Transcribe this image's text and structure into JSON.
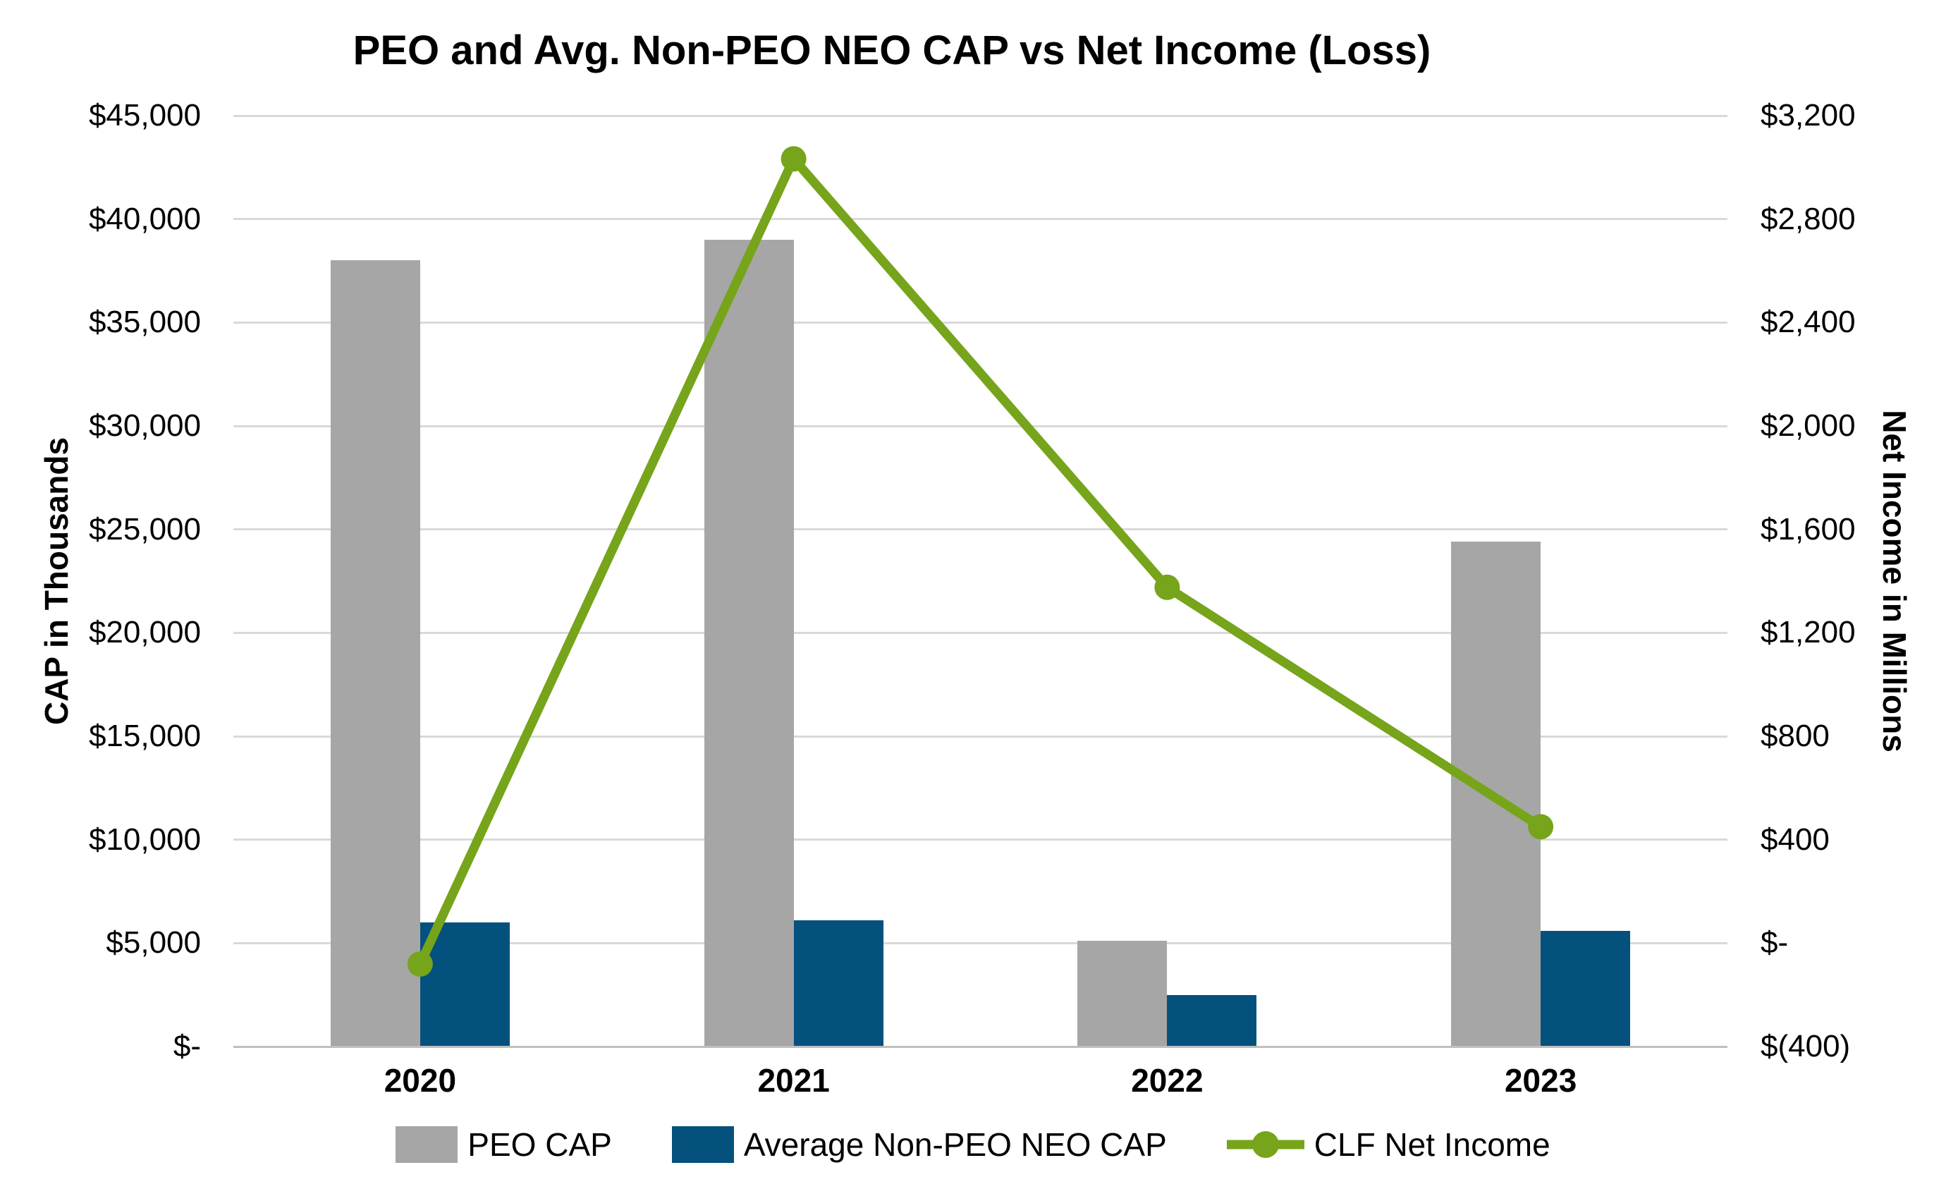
{
  "title": "PEO and Avg. Non-PEO NEO CAP vs Net Income (Loss)",
  "chart_data": {
    "type": "combo",
    "categories": [
      "2020",
      "2021",
      "2022",
      "2023"
    ],
    "series": [
      {
        "name": "PEO CAP",
        "type": "bar",
        "axis": "left",
        "color": "#a6a6a6",
        "values": [
          38000,
          39000,
          5100,
          24400
        ]
      },
      {
        "name": "Average Non-PEO NEO CAP",
        "type": "bar",
        "axis": "left",
        "color": "#05517e",
        "values": [
          6000,
          6100,
          2500,
          5600
        ]
      },
      {
        "name": "CLF Net Income",
        "type": "line",
        "axis": "right",
        "color": "#76a41a",
        "values": [
          -81,
          3033,
          1376,
          450
        ]
      }
    ],
    "left_axis": {
      "title": "CAP in Thousands",
      "min": 0,
      "max": 45000,
      "step": 5000,
      "tick_labels": [
        "$45,000",
        "$40,000",
        "$35,000",
        "$30,000",
        "$25,000",
        "$20,000",
        "$15,000",
        "$10,000",
        "$5,000",
        "$-"
      ]
    },
    "right_axis": {
      "title": "Net Income in Millions",
      "min": -400,
      "max": 3200,
      "step": 400,
      "tick_labels": [
        "$3,200",
        "$2,800",
        "$2,400",
        "$2,000",
        "$1,600",
        "$1,200",
        "$800",
        "$400",
        "$-",
        "$(400)"
      ]
    },
    "legend_position": "bottom",
    "grid": true,
    "colors": {
      "gridline": "#d9d9d9",
      "baseline": "#bfbfbf",
      "text": "#000000",
      "background": "#ffffff"
    }
  }
}
